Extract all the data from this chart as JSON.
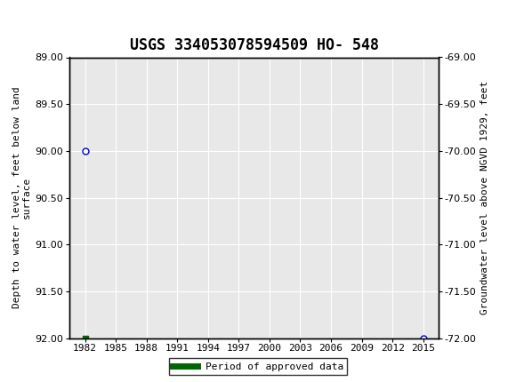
{
  "title": "USGS 334053078594509 HO- 548",
  "ylabel_left": "Depth to water level, feet below land\nsurface",
  "ylabel_right": "Groundwater level above NGVD 1929, feet",
  "ylim_left": [
    89.0,
    92.0
  ],
  "ylim_right": [
    -69.0,
    -72.0
  ],
  "yticks_left": [
    89.0,
    89.5,
    90.0,
    90.5,
    91.0,
    91.5,
    92.0
  ],
  "yticks_right": [
    -69.0,
    -69.5,
    -70.0,
    -70.5,
    -71.0,
    -71.5,
    -72.0
  ],
  "xticks": [
    1982,
    1985,
    1988,
    1991,
    1994,
    1997,
    2000,
    2003,
    2006,
    2009,
    2012,
    2015
  ],
  "xlim": [
    1980.5,
    2016.5
  ],
  "circle_points_x": [
    1982,
    2015
  ],
  "circle_points_y": [
    90.0,
    92.0
  ],
  "square_points_x": [
    1982
  ],
  "square_points_y": [
    92.0
  ],
  "point_color": "#0000cc",
  "square_color": "#006600",
  "legend_label": "Period of approved data",
  "legend_line_color": "#006600",
  "header_bg": "#1a7a3e",
  "background_color": "#ffffff",
  "plot_bg": "#e8e8e8",
  "grid_color": "#ffffff",
  "title_fontsize": 12,
  "axis_label_fontsize": 8,
  "tick_fontsize": 8
}
